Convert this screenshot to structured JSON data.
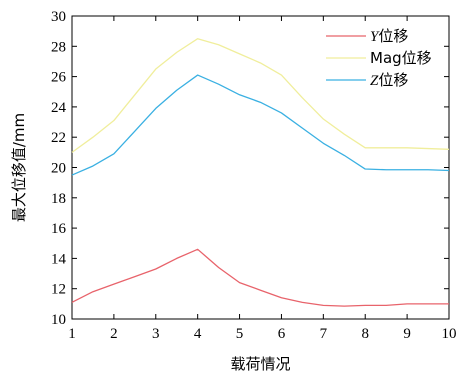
{
  "chart_data": {
    "type": "line",
    "xlabel": "载荷情况",
    "ylabel": "最大位移值/mm",
    "xlim": [
      1,
      10
    ],
    "ylim": [
      10,
      30
    ],
    "xticks": [
      "1",
      "2",
      "3",
      "4",
      "5",
      "6",
      "7",
      "8",
      "9",
      "10"
    ],
    "yticks": [
      "10",
      "12",
      "14",
      "16",
      "18",
      "20",
      "22",
      "24",
      "26",
      "28",
      "30"
    ],
    "legend_position": "top-right",
    "grid": false,
    "series": [
      {
        "key": "y",
        "name_italic": "Y",
        "name_rest": "位移",
        "color": "#e8636b",
        "x": [
          1,
          1.5,
          2,
          2.5,
          3,
          3.5,
          4,
          4.5,
          5,
          5.5,
          6,
          6.5,
          7,
          7.5,
          8,
          8.5,
          9,
          9.5,
          10
        ],
        "y": [
          11.1,
          11.8,
          12.3,
          12.8,
          13.3,
          14.0,
          14.6,
          13.4,
          12.4,
          11.9,
          11.4,
          11.1,
          10.9,
          10.85,
          10.9,
          10.9,
          11.0,
          11.0,
          11.0
        ]
      },
      {
        "key": "mag",
        "name_italic": "",
        "name_rest": "Mag位移",
        "color": "#f0ee9c",
        "x": [
          1,
          1.5,
          2,
          2.5,
          3,
          3.5,
          4,
          4.5,
          5,
          5.5,
          6,
          6.5,
          7,
          7.5,
          8,
          8.5,
          9,
          9.5,
          10
        ],
        "y": [
          21.0,
          22.0,
          23.1,
          24.8,
          26.5,
          27.6,
          28.5,
          28.1,
          27.5,
          26.9,
          26.1,
          24.6,
          23.2,
          22.2,
          21.3,
          21.3,
          21.3,
          21.25,
          21.2
        ]
      },
      {
        "key": "z",
        "name_italic": "Z",
        "name_rest": "位移",
        "color": "#3ab0e2",
        "x": [
          1,
          1.5,
          2,
          2.5,
          3,
          3.5,
          4,
          4.5,
          5,
          5.5,
          6,
          6.5,
          7,
          7.5,
          8,
          8.5,
          9,
          9.5,
          10
        ],
        "y": [
          19.5,
          20.1,
          20.9,
          22.4,
          23.9,
          25.1,
          26.1,
          25.5,
          24.8,
          24.3,
          23.6,
          22.6,
          21.6,
          20.8,
          19.9,
          19.85,
          19.85,
          19.85,
          19.8
        ]
      }
    ]
  }
}
